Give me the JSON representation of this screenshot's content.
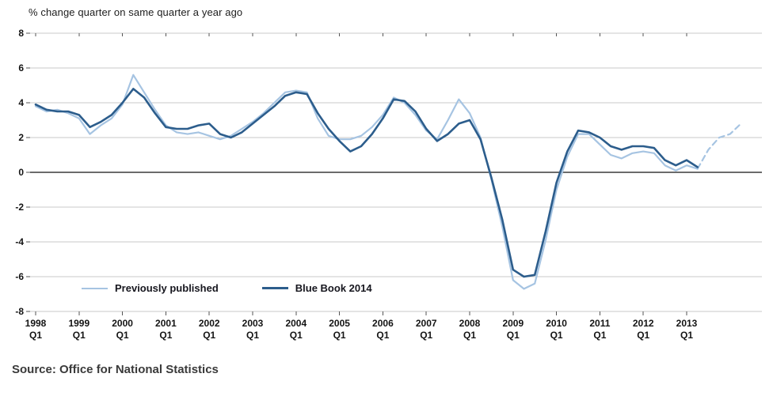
{
  "header": {
    "title": "% change quarter on same quarter a year ago"
  },
  "footer": {
    "source": "Source: Office for National Statistics"
  },
  "legend": {
    "items": [
      {
        "label": "Previously published"
      },
      {
        "label": "Blue Book 2014"
      }
    ]
  },
  "chart_data": {
    "type": "line",
    "title": "% change quarter on same quarter a year ago",
    "xlabel": "",
    "ylabel": "% change quarter on same quarter a year ago",
    "ylim": [
      -8,
      8
    ],
    "yticks": [
      8,
      6,
      4,
      2,
      0,
      -2,
      -4,
      -6,
      -8
    ],
    "x_tick_labels": [
      "1998",
      "1999",
      "2000",
      "2001",
      "2002",
      "2003",
      "2004",
      "2005",
      "2006",
      "2007",
      "2008",
      "2009",
      "2010",
      "2011",
      "2012",
      "2013"
    ],
    "x_tick_sub_label": "Q1",
    "grid": "horizontal",
    "zero_line": true,
    "legend_position": "inside-bottom-left",
    "colors": {
      "grid": "#c8c8c8",
      "zero_line": "#6b6b6b",
      "axis": "#555555",
      "text": "#141414",
      "previously_published": "#a6c4e2",
      "blue_book_2014": "#2c5d8c"
    },
    "categories": [
      "1998 Q1",
      "1998 Q2",
      "1998 Q3",
      "1998 Q4",
      "1999 Q1",
      "1999 Q2",
      "1999 Q3",
      "1999 Q4",
      "2000 Q1",
      "2000 Q2",
      "2000 Q3",
      "2000 Q4",
      "2001 Q1",
      "2001 Q2",
      "2001 Q3",
      "2001 Q4",
      "2002 Q1",
      "2002 Q2",
      "2002 Q3",
      "2002 Q4",
      "2003 Q1",
      "2003 Q2",
      "2003 Q3",
      "2003 Q4",
      "2004 Q1",
      "2004 Q2",
      "2004 Q3",
      "2004 Q4",
      "2005 Q1",
      "2005 Q2",
      "2005 Q3",
      "2005 Q4",
      "2006 Q1",
      "2006 Q2",
      "2006 Q3",
      "2006 Q4",
      "2007 Q1",
      "2007 Q2",
      "2007 Q3",
      "2007 Q4",
      "2008 Q1",
      "2008 Q2",
      "2008 Q3",
      "2008 Q4",
      "2009 Q1",
      "2009 Q2",
      "2009 Q3",
      "2009 Q4",
      "2010 Q1",
      "2010 Q2",
      "2010 Q3",
      "2010 Q4",
      "2011 Q1",
      "2011 Q2",
      "2011 Q3",
      "2011 Q4",
      "2012 Q1",
      "2012 Q2",
      "2012 Q3",
      "2012 Q4",
      "2013 Q1",
      "2013 Q2",
      "2013 Q3",
      "2013 Q4",
      "2014 Q1",
      "2014 Q2"
    ],
    "series": [
      {
        "name": "Previously published",
        "color": "#a6c4e2",
        "width": 2.2,
        "dash_from_index": 61,
        "dash_note": "dashed (latest estimates) from 2013 Q2 onwards",
        "values": [
          3.8,
          3.5,
          3.6,
          3.4,
          3.1,
          2.2,
          2.7,
          3.1,
          3.9,
          5.6,
          4.6,
          3.6,
          2.7,
          2.3,
          2.2,
          2.3,
          2.1,
          1.9,
          2.1,
          2.5,
          2.9,
          3.4,
          4.0,
          4.6,
          4.7,
          4.6,
          3.1,
          2.1,
          1.9,
          1.9,
          2.1,
          2.6,
          3.3,
          4.3,
          4.0,
          3.3,
          2.4,
          1.9,
          3.0,
          4.2,
          3.4,
          2.0,
          -0.4,
          -3.1,
          -6.2,
          -6.7,
          -6.4,
          -3.9,
          -1.0,
          0.9,
          2.2,
          2.2,
          1.6,
          1.0,
          0.8,
          1.1,
          1.2,
          1.1,
          0.4,
          0.1,
          0.4,
          0.2,
          1.3,
          2.0,
          2.2,
          2.8
        ]
      },
      {
        "name": "Blue Book 2014",
        "color": "#2c5d8c",
        "width": 2.6,
        "values": [
          3.9,
          3.6,
          3.5,
          3.5,
          3.3,
          2.6,
          2.9,
          3.3,
          4.0,
          4.8,
          4.3,
          3.4,
          2.6,
          2.5,
          2.5,
          2.7,
          2.8,
          2.2,
          2.0,
          2.3,
          2.8,
          3.3,
          3.8,
          4.4,
          4.6,
          4.5,
          3.4,
          2.5,
          1.8,
          1.2,
          1.5,
          2.2,
          3.1,
          4.2,
          4.1,
          3.5,
          2.5,
          1.8,
          2.2,
          2.8,
          3.0,
          1.9,
          -0.3,
          -2.7,
          -5.6,
          -6.0,
          -5.9,
          -3.4,
          -0.6,
          1.2,
          2.4,
          2.3,
          2.0,
          1.5,
          1.3,
          1.5,
          1.5,
          1.4,
          0.7,
          0.4,
          0.7,
          0.3,
          null,
          null,
          null,
          null
        ]
      }
    ]
  }
}
